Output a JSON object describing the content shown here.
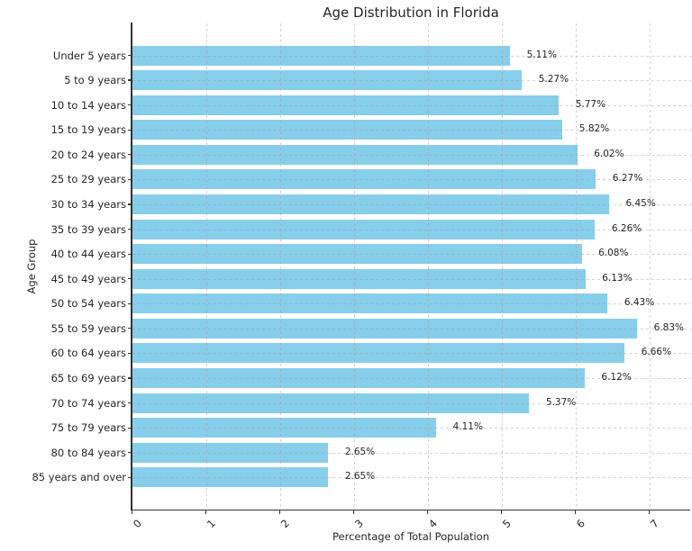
{
  "chart_data": {
    "type": "bar",
    "orientation": "horizontal",
    "title": "Age Distribution in Florida",
    "xlabel": "Percentage of Total Population",
    "ylabel": "Age Group",
    "categories": [
      "Under 5 years",
      "5 to 9 years",
      "10 to 14 years",
      "15 to 19 years",
      "20 to 24 years",
      "25 to 29 years",
      "30 to 34 years",
      "35 to 39 years",
      "40 to 44 years",
      "45 to 49 years",
      "50 to 54 years",
      "55 to 59 years",
      "60 to 64 years",
      "65 to 69 years",
      "70 to 74 years",
      "75 to 79 years",
      "80 to 84 years",
      "85 years and over"
    ],
    "values": [
      5.11,
      5.27,
      5.77,
      5.82,
      6.02,
      6.27,
      6.45,
      6.26,
      6.08,
      6.13,
      6.43,
      6.83,
      6.66,
      6.12,
      5.37,
      4.11,
      2.65,
      2.65
    ],
    "value_labels": [
      "5.11%",
      "5.27%",
      "5.77%",
      "5.82%",
      "6.02%",
      "6.27%",
      "6.45%",
      "6.26%",
      "6.08%",
      "6.13%",
      "6.43%",
      "6.83%",
      "6.66%",
      "6.12%",
      "5.37%",
      "4.11%",
      "2.65%",
      "2.65%"
    ],
    "x_ticks": [
      0,
      1,
      2,
      3,
      4,
      5,
      6,
      7
    ],
    "x_tick_labels": [
      "0",
      "1",
      "2",
      "3",
      "4",
      "5",
      "6",
      "7"
    ],
    "xlim": [
      0,
      7.56
    ],
    "x_tick_rotation": 45,
    "bar_color": "#87CEEB",
    "background_color": "#ffffff",
    "text_color": "#262626",
    "grid_color": "#9e9e9e",
    "grid_style": "dashed",
    "legend": "none"
  }
}
